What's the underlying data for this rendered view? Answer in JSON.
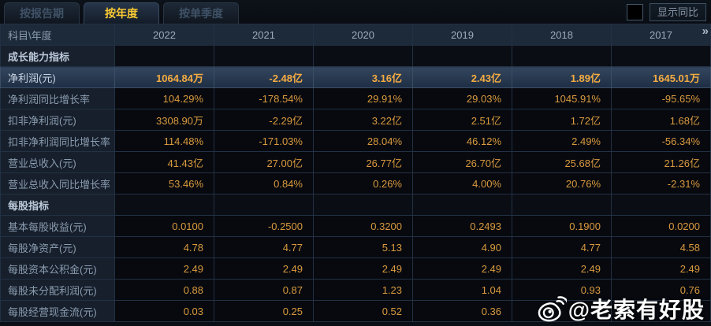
{
  "tabs": [
    {
      "label": "按报告期",
      "active": false
    },
    {
      "label": "按年度",
      "active": true
    },
    {
      "label": "按单季度",
      "active": false
    }
  ],
  "controls": {
    "show_yoy_label": "显示同比",
    "checkbox_checked": false
  },
  "table": {
    "corner_label": "科目\\年度",
    "years": [
      "2022",
      "2021",
      "2020",
      "2019",
      "2018",
      "2017"
    ],
    "more_icon": "»",
    "rows": [
      {
        "type": "section",
        "label": "成长能力指标",
        "values": [
          "",
          "",
          "",
          "",
          "",
          ""
        ]
      },
      {
        "type": "data",
        "highlight": true,
        "label": "净利润(元)",
        "values": [
          "1064.84万",
          "-2.48亿",
          "3.16亿",
          "2.43亿",
          "1.89亿",
          "1645.01万"
        ]
      },
      {
        "type": "data",
        "label": "净利润同比增长率",
        "values": [
          "104.29%",
          "-178.54%",
          "29.91%",
          "29.03%",
          "1045.91%",
          "-95.65%"
        ]
      },
      {
        "type": "data",
        "label": "扣非净利润(元)",
        "values": [
          "3308.90万",
          "-2.29亿",
          "3.22亿",
          "2.51亿",
          "1.72亿",
          "1.68亿"
        ]
      },
      {
        "type": "data",
        "label": "扣非净利润同比增长率",
        "values": [
          "114.48%",
          "-171.03%",
          "28.04%",
          "46.12%",
          "2.49%",
          "-56.34%"
        ]
      },
      {
        "type": "data",
        "label": "营业总收入(元)",
        "values": [
          "41.43亿",
          "27.00亿",
          "26.77亿",
          "26.70亿",
          "25.68亿",
          "21.26亿"
        ]
      },
      {
        "type": "data",
        "label": "营业总收入同比增长率",
        "values": [
          "53.46%",
          "0.84%",
          "0.26%",
          "4.00%",
          "20.76%",
          "-2.31%"
        ]
      },
      {
        "type": "section",
        "label": "每股指标",
        "values": [
          "",
          "",
          "",
          "",
          "",
          ""
        ]
      },
      {
        "type": "data",
        "label": "基本每股收益(元)",
        "values": [
          "0.0100",
          "-0.2500",
          "0.3200",
          "0.2493",
          "0.1900",
          "0.0200"
        ]
      },
      {
        "type": "data",
        "label": "每股净资产(元)",
        "values": [
          "4.78",
          "4.77",
          "5.13",
          "4.90",
          "4.77",
          "4.58"
        ]
      },
      {
        "type": "data",
        "label": "每股资本公积金(元)",
        "values": [
          "2.49",
          "2.49",
          "2.49",
          "2.49",
          "2.49",
          "2.49"
        ]
      },
      {
        "type": "data",
        "label": "每股未分配利润(元)",
        "values": [
          "0.88",
          "0.87",
          "1.23",
          "1.04",
          "0.93",
          "0.76"
        ]
      },
      {
        "type": "data",
        "label": "每股经营现金流(元)",
        "values": [
          "0.03",
          "0.25",
          "0.52",
          "0.36",
          "",
          ""
        ]
      }
    ]
  },
  "watermark": {
    "icon": "weibo-icon",
    "text": "@老索有好股"
  },
  "colors": {
    "value_orange": "#d99a3f",
    "highlight_value_gold": "#f6ac41",
    "active_tab_yellow": "#f7c733",
    "highlight_row_blue": "#33465e",
    "header_bg": "#1d2a3a",
    "label_col_bg": "#161f2b",
    "cell_border": "#223145",
    "watermark_white": "#ffffff"
  }
}
